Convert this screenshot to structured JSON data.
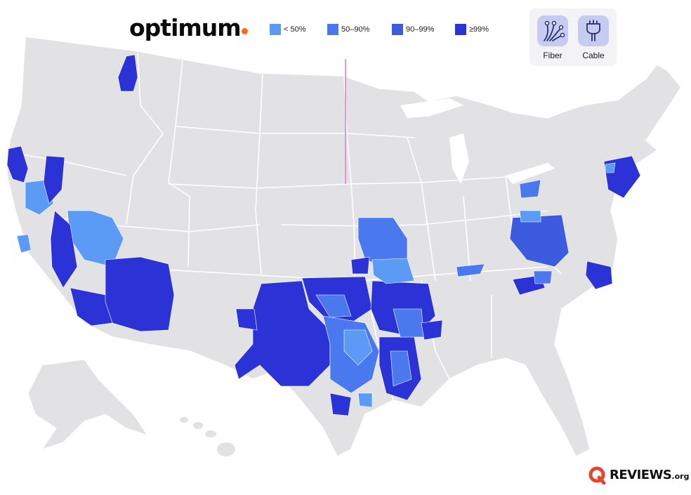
{
  "brand": {
    "name": "optimum",
    "dot_color": "#ff6a13"
  },
  "legend": [
    {
      "label": "< 50%",
      "color": "#5b9bf5"
    },
    {
      "label": "50–90%",
      "color": "#4a78ef"
    },
    {
      "label": "90–99%",
      "color": "#3d5bdf"
    },
    {
      "label": "≥99%",
      "color": "#2c33d6"
    }
  ],
  "technologies": [
    {
      "label": "Fiber",
      "icon": "fiber-icon"
    },
    {
      "label": "Cable",
      "icon": "cable-icon"
    }
  ],
  "source_logo": {
    "text": "REVIEWS",
    "suffix": ".org",
    "mark_color": "#e8442c"
  },
  "map": {
    "land_color": "#e2e2e4",
    "border_color": "#ffffff",
    "marker_color": "#d97ad6",
    "coverage_regions": [
      {
        "name": "california-north",
        "level": "≥99%"
      },
      {
        "name": "nevada-west",
        "level": "< 50%"
      },
      {
        "name": "arizona",
        "level": "≥99%"
      },
      {
        "name": "texas-panhandle",
        "level": "≥99%"
      },
      {
        "name": "texas-central",
        "level": "50–90%"
      },
      {
        "name": "oklahoma-arkansas",
        "level": "≥99%"
      },
      {
        "name": "louisiana",
        "level": "50–90%"
      },
      {
        "name": "missouri",
        "level": "90–99%"
      },
      {
        "name": "kentucky",
        "level": "< 50%"
      },
      {
        "name": "west-virginia",
        "level": "90–99%"
      },
      {
        "name": "north-carolina",
        "level": "≥99%"
      },
      {
        "name": "new-york-new-jersey",
        "level": "≥99%"
      },
      {
        "name": "idaho-north",
        "level": "≥99%"
      }
    ]
  }
}
